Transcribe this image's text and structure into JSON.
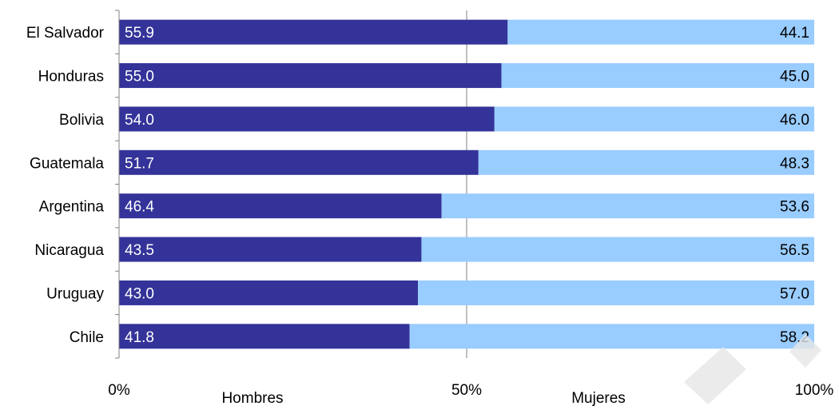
{
  "chart_data": {
    "type": "bar",
    "orientation": "horizontal",
    "stacked": true,
    "percent": true,
    "categories": [
      "El Salvador",
      "Honduras",
      "Bolivia",
      "Guatemala",
      "Argentina",
      "Nicaragua",
      "Uruguay",
      "Chile"
    ],
    "series": [
      {
        "name": "Hombres",
        "color": "#333399",
        "values": [
          55.9,
          55.0,
          54.0,
          51.7,
          46.4,
          43.5,
          43.0,
          41.8
        ]
      },
      {
        "name": "Mujeres",
        "color": "#99ccff",
        "values": [
          44.1,
          45.0,
          46.0,
          48.3,
          53.6,
          56.5,
          57.0,
          58.2
        ]
      }
    ],
    "xlim": [
      0,
      100
    ],
    "xticks": [
      "0%",
      "50%",
      "100%"
    ],
    "grid": "vertical at 50%",
    "legend": "bottom"
  }
}
